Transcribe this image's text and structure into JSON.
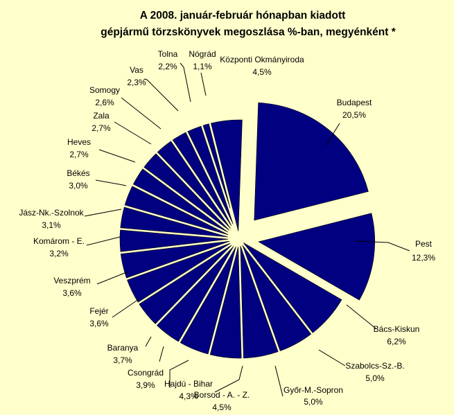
{
  "chart_data": {
    "type": "pie",
    "title_lines": [
      "A  2008. január-február hónapban kiadott",
      "gépjármű törzskönyvek megoszlása %-ban, megyénként *"
    ],
    "slices": [
      {
        "name": "Budapest",
        "value": 20.5,
        "label": "20,5%"
      },
      {
        "name": "Pest",
        "value": 12.3,
        "label": "12,3%"
      },
      {
        "name": "Bács-Kiskun",
        "value": 6.2,
        "label": "6,2%"
      },
      {
        "name": "Szabolcs-Sz.-B.",
        "value": 5.0,
        "label": "5,0%"
      },
      {
        "name": "Győr-M.-Sopron",
        "value": 5.0,
        "label": "5,0%"
      },
      {
        "name": "Borsod - A. - Z.",
        "value": 4.5,
        "label": "4,5%"
      },
      {
        "name": "Hajdú - Bihar",
        "value": 4.3,
        "label": "4,3%"
      },
      {
        "name": "Csongrád",
        "value": 3.9,
        "label": "3,9%"
      },
      {
        "name": "Baranya",
        "value": 3.7,
        "label": "3,7%"
      },
      {
        "name": "Fejér",
        "value": 3.6,
        "label": "3,6%"
      },
      {
        "name": "Veszprém",
        "value": 3.6,
        "label": "3,6%"
      },
      {
        "name": "Komárom - E.",
        "value": 3.2,
        "label": "3,2%"
      },
      {
        "name": "Jász-Nk.-Szolnok",
        "value": 3.1,
        "label": "3,1%"
      },
      {
        "name": "Békés",
        "value": 3.0,
        "label": "3,0%"
      },
      {
        "name": "Heves",
        "value": 2.7,
        "label": "2,7%"
      },
      {
        "name": "Zala",
        "value": 2.7,
        "label": "2,7%"
      },
      {
        "name": "Somogy",
        "value": 2.6,
        "label": "2,6%"
      },
      {
        "name": "Vas",
        "value": 2.3,
        "label": "2,3%"
      },
      {
        "name": "Tolna",
        "value": 2.2,
        "label": "2,2%"
      },
      {
        "name": "Nógrád",
        "value": 1.1,
        "label": "1,1%"
      },
      {
        "name": "Központi Okmányiroda",
        "value": 4.5,
        "label": "4,5%"
      }
    ],
    "colors": {
      "background": "#ffffcc",
      "slice_fill": "#000080",
      "text": "#000000"
    },
    "legend": "none",
    "labels": "outside with leader lines"
  }
}
